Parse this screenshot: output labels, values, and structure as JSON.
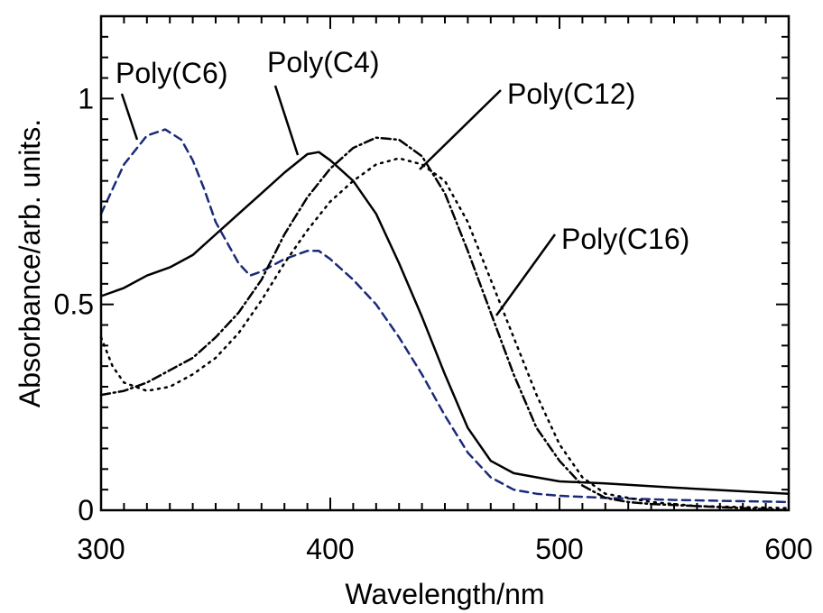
{
  "chart_data": {
    "type": "line",
    "title": "",
    "xlabel": "Wavelength/nm",
    "ylabel": "Absorbance/arb. units.",
    "xlim": [
      300,
      600
    ],
    "ylim": [
      0,
      1.2
    ],
    "x_ticks": [
      300,
      400,
      500,
      600
    ],
    "x_tick_labels": [
      "300",
      "400",
      "500",
      "600"
    ],
    "y_ticks": [
      0,
      0.5,
      1
    ],
    "y_tick_labels": [
      "0",
      "0.5",
      "1"
    ],
    "grid": false,
    "legend": "none",
    "series": [
      {
        "name": "Poly(C4)",
        "color": "#000000",
        "style": "solid",
        "x": [
          300,
          310,
          320,
          330,
          340,
          350,
          360,
          370,
          380,
          390,
          395,
          400,
          410,
          420,
          430,
          440,
          450,
          460,
          470,
          480,
          490,
          500,
          520,
          550,
          600
        ],
        "y": [
          0.52,
          0.54,
          0.57,
          0.59,
          0.62,
          0.67,
          0.72,
          0.77,
          0.82,
          0.865,
          0.87,
          0.85,
          0.8,
          0.72,
          0.6,
          0.47,
          0.33,
          0.2,
          0.12,
          0.09,
          0.08,
          0.07,
          0.065,
          0.055,
          0.04
        ]
      },
      {
        "name": "Poly(C6)",
        "color": "#1a2a7a",
        "style": "dashed",
        "x": [
          300,
          310,
          320,
          328,
          335,
          340,
          345,
          350,
          360,
          365,
          370,
          380,
          390,
          395,
          400,
          410,
          420,
          430,
          440,
          450,
          460,
          470,
          480,
          490,
          500,
          520,
          550,
          600
        ],
        "y": [
          0.72,
          0.84,
          0.91,
          0.925,
          0.9,
          0.85,
          0.78,
          0.7,
          0.6,
          0.57,
          0.58,
          0.61,
          0.63,
          0.63,
          0.61,
          0.56,
          0.5,
          0.42,
          0.33,
          0.23,
          0.14,
          0.08,
          0.05,
          0.04,
          0.035,
          0.03,
          0.025,
          0.02
        ]
      },
      {
        "name": "Poly(C12)",
        "color": "#000000",
        "style": "dashdot",
        "x": [
          300,
          310,
          320,
          330,
          340,
          350,
          360,
          370,
          380,
          390,
          400,
          410,
          420,
          430,
          440,
          450,
          460,
          470,
          480,
          490,
          500,
          510,
          520,
          530,
          540,
          560,
          580,
          600
        ],
        "y": [
          0.28,
          0.29,
          0.31,
          0.34,
          0.37,
          0.42,
          0.48,
          0.56,
          0.67,
          0.76,
          0.83,
          0.88,
          0.905,
          0.9,
          0.86,
          0.77,
          0.63,
          0.48,
          0.33,
          0.2,
          0.12,
          0.06,
          0.03,
          0.02,
          0.015,
          0.01,
          0.005,
          0.0
        ]
      },
      {
        "name": "Poly(C16)",
        "color": "#000000",
        "style": "dotted",
        "x": [
          300,
          305,
          310,
          320,
          330,
          340,
          350,
          360,
          370,
          380,
          390,
          400,
          410,
          420,
          430,
          440,
          450,
          460,
          470,
          480,
          490,
          500,
          510,
          520,
          540,
          560,
          600
        ],
        "y": [
          0.42,
          0.35,
          0.31,
          0.29,
          0.3,
          0.33,
          0.37,
          0.43,
          0.51,
          0.6,
          0.68,
          0.75,
          0.8,
          0.84,
          0.855,
          0.84,
          0.8,
          0.7,
          0.56,
          0.42,
          0.28,
          0.16,
          0.08,
          0.04,
          0.02,
          0.01,
          0.005
        ]
      }
    ],
    "annotations": [
      {
        "text": "Poly(C6)",
        "series": "Poly(C6)"
      },
      {
        "text": "Poly(C4)",
        "series": "Poly(C4)"
      },
      {
        "text": "Poly(C12)",
        "series": "Poly(C12)"
      },
      {
        "text": "Poly(C16)",
        "series": "Poly(C16)"
      }
    ]
  }
}
